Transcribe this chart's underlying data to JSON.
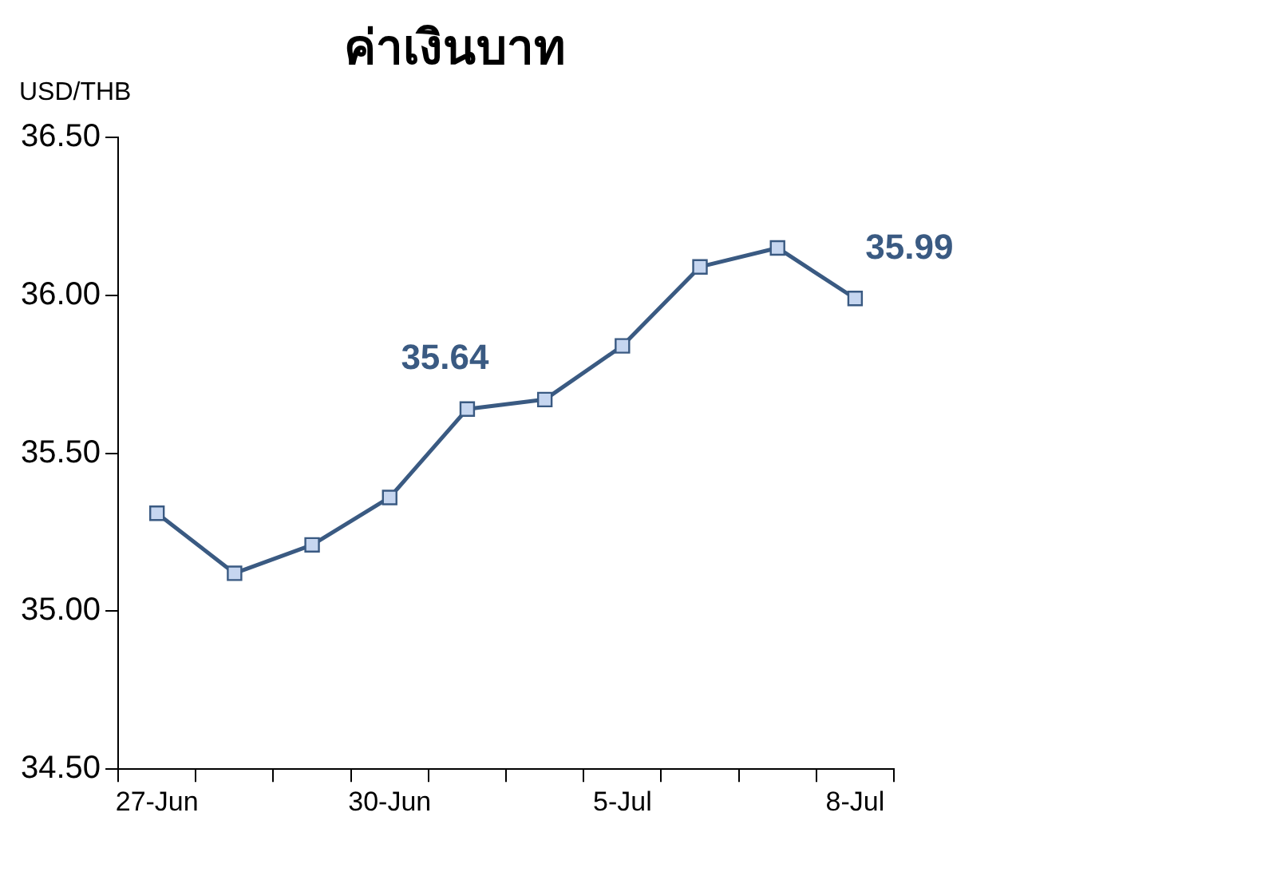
{
  "chart_data": {
    "type": "line",
    "title": "ค่าเงินบาท",
    "ylabel": "USD/THB",
    "categories": [
      "27-Jun",
      null,
      null,
      "30-Jun",
      null,
      null,
      "5-Jul",
      null,
      null,
      "8-Jul"
    ],
    "series": [
      {
        "color": "#3a5a82",
        "values": [
          35.31,
          35.12,
          35.21,
          35.36,
          35.64,
          35.67,
          35.84,
          36.09,
          36.15,
          35.99
        ],
        "value_labels": [
          null,
          null,
          null,
          null,
          "35.64",
          null,
          null,
          null,
          null,
          "35.99"
        ]
      }
    ],
    "ylim": [
      34.5,
      36.5
    ],
    "yticks": [
      {
        "value": 34.5,
        "label": "34.50"
      },
      {
        "value": 35,
        "label": "35.00"
      },
      {
        "value": 35.5,
        "label": "35.50"
      },
      {
        "value": 36,
        "label": "36.00"
      },
      {
        "value": 36.5,
        "label": "36.50"
      }
    ],
    "grid": false,
    "legend": false,
    "marker": "square",
    "line_style": "solid"
  }
}
